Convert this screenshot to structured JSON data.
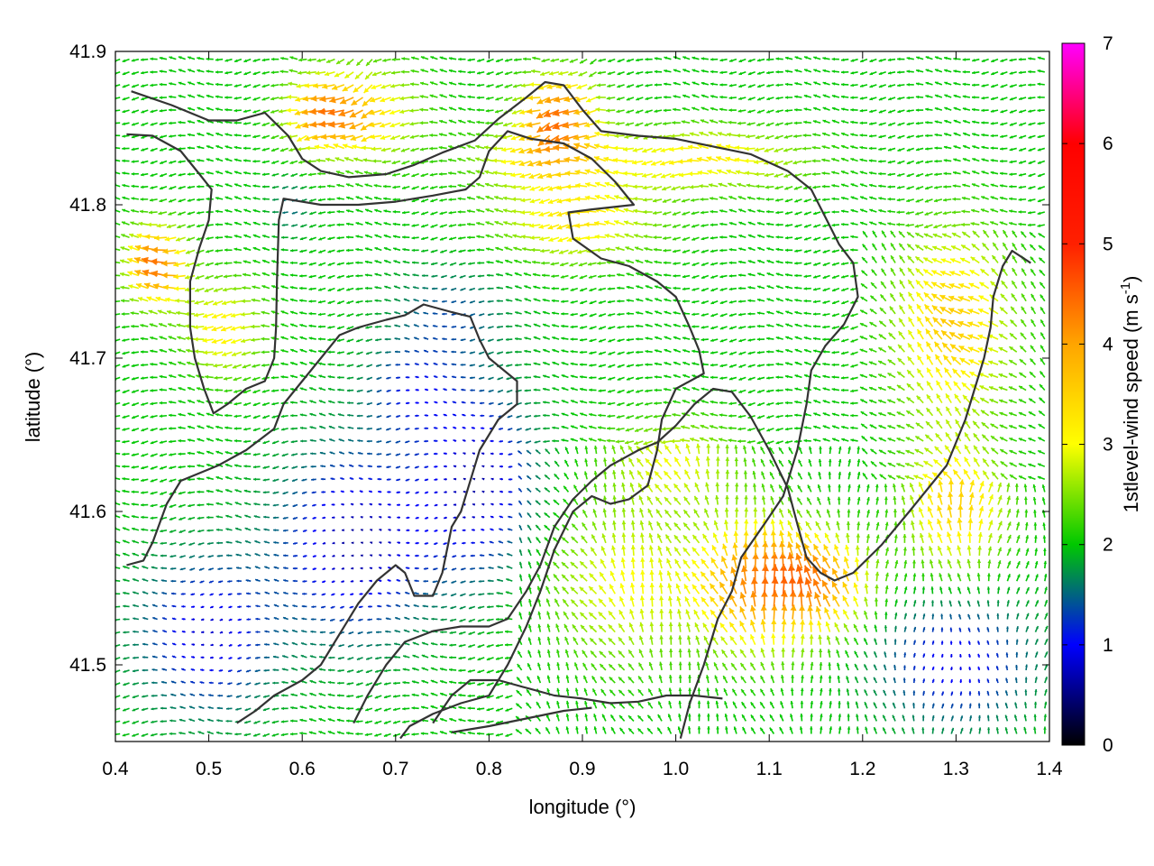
{
  "chart_data": {
    "type": "vector-field",
    "xlabel": "longitude (°)",
    "ylabel": "latitude (°)",
    "colorbar_label": "1stlevel-wind speed (m s",
    "colorbar_label_exp": "-1",
    "colorbar_label_end": ")",
    "xlim": [
      0.4,
      1.4
    ],
    "ylim": [
      41.45,
      41.9
    ],
    "x_ticks": [
      0.4,
      0.5,
      0.6,
      0.7,
      0.8,
      0.9,
      1.0,
      1.1,
      1.2,
      1.3,
      1.4
    ],
    "x_tick_labels": [
      "0.4",
      "0.5",
      "0.6",
      "0.7",
      "0.8",
      "0.9",
      "1.0",
      "1.1",
      "1.2",
      "1.3",
      "1.4"
    ],
    "y_ticks": [
      41.5,
      41.6,
      41.7,
      41.8,
      41.9
    ],
    "y_tick_labels": [
      "41.5",
      "41.6",
      "41.7",
      "41.8",
      "41.9"
    ],
    "colorbar": {
      "min": 0,
      "max": 7,
      "ticks": [
        0,
        1,
        2,
        3,
        4,
        5,
        6,
        7
      ],
      "tick_labels": [
        "0",
        "1",
        "2",
        "3",
        "4",
        "5",
        "6",
        "7"
      ],
      "palette": [
        "#000000",
        "#0000ff",
        "#00c800",
        "#ffff00",
        "#ffa500",
        "#ff0000",
        "#ff00ff"
      ]
    },
    "grid": false,
    "contours": [
      [
        [
          0.417,
          41.874
        ],
        [
          0.46,
          41.865
        ],
        [
          0.5,
          41.855
        ],
        [
          0.53,
          41.855
        ],
        [
          0.56,
          41.86
        ],
        [
          0.585,
          41.845
        ],
        [
          0.6,
          41.83
        ],
        [
          0.62,
          41.822
        ],
        [
          0.65,
          41.818
        ],
        [
          0.69,
          41.82
        ],
        [
          0.72,
          41.826
        ],
        [
          0.75,
          41.834
        ],
        [
          0.785,
          41.842
        ],
        [
          0.81,
          41.856
        ],
        [
          0.84,
          41.87
        ],
        [
          0.86,
          41.88
        ],
        [
          0.88,
          41.878
        ],
        [
          0.9,
          41.862
        ],
        [
          0.92,
          41.848
        ],
        [
          0.96,
          41.845
        ],
        [
          1.0,
          41.843
        ],
        [
          1.04,
          41.838
        ],
        [
          1.08,
          41.833
        ],
        [
          1.12,
          41.822
        ],
        [
          1.145,
          41.81
        ],
        [
          1.16,
          41.792
        ],
        [
          1.175,
          41.774
        ],
        [
          1.19,
          41.762
        ],
        [
          1.195,
          41.74
        ],
        [
          1.18,
          41.722
        ],
        [
          1.16,
          41.708
        ],
        [
          1.145,
          41.692
        ],
        [
          1.14,
          41.67
        ],
        [
          1.13,
          41.64
        ],
        [
          1.115,
          41.61
        ],
        [
          1.095,
          41.592
        ],
        [
          1.07,
          41.57
        ],
        [
          1.06,
          41.548
        ],
        [
          1.045,
          41.53
        ],
        [
          1.03,
          41.5
        ],
        [
          1.015,
          41.475
        ],
        [
          1.005,
          41.452
        ]
      ],
      [
        [
          0.412,
          41.846
        ],
        [
          0.44,
          41.845
        ],
        [
          0.47,
          41.835
        ],
        [
          0.49,
          41.82
        ],
        [
          0.503,
          41.81
        ],
        [
          0.5,
          41.79
        ],
        [
          0.49,
          41.772
        ],
        [
          0.48,
          41.75
        ],
        [
          0.48,
          41.72
        ],
        [
          0.485,
          41.7
        ],
        [
          0.495,
          41.68
        ],
        [
          0.505,
          41.664
        ],
        [
          0.52,
          41.67
        ],
        [
          0.54,
          41.68
        ],
        [
          0.56,
          41.685
        ],
        [
          0.57,
          41.7
        ],
        [
          0.572,
          41.72
        ],
        [
          0.573,
          41.75
        ],
        [
          0.575,
          41.79
        ],
        [
          0.58,
          41.804
        ],
        [
          0.62,
          41.8
        ],
        [
          0.66,
          41.8
        ],
        [
          0.7,
          41.802
        ],
        [
          0.74,
          41.806
        ],
        [
          0.775,
          41.81
        ],
        [
          0.79,
          41.818
        ],
        [
          0.8,
          41.835
        ],
        [
          0.82,
          41.848
        ],
        [
          0.845,
          41.843
        ],
        [
          0.88,
          41.84
        ],
        [
          0.91,
          41.83
        ],
        [
          0.935,
          41.815
        ],
        [
          0.955,
          41.8
        ],
        [
          0.91,
          41.797
        ],
        [
          0.885,
          41.795
        ],
        [
          0.89,
          41.778
        ],
        [
          0.92,
          41.765
        ],
        [
          0.95,
          41.76
        ],
        [
          0.98,
          41.75
        ],
        [
          1.0,
          41.74
        ],
        [
          1.015,
          41.72
        ],
        [
          1.025,
          41.705
        ],
        [
          1.03,
          41.69
        ],
        [
          1.0,
          41.68
        ],
        [
          0.985,
          41.66
        ],
        [
          0.98,
          41.64
        ],
        [
          0.97,
          41.617
        ],
        [
          0.95,
          41.608
        ],
        [
          0.93,
          41.605
        ],
        [
          0.91,
          41.61
        ],
        [
          0.89,
          41.6
        ],
        [
          0.87,
          41.575
        ],
        [
          0.855,
          41.548
        ],
        [
          0.84,
          41.525
        ],
        [
          0.82,
          41.5
        ],
        [
          0.8,
          41.48
        ],
        [
          0.77,
          41.475
        ],
        [
          0.74,
          41.468
        ],
        [
          0.715,
          41.46
        ],
        [
          0.705,
          41.452
        ]
      ],
      [
        [
          0.412,
          41.565
        ],
        [
          0.43,
          41.568
        ],
        [
          0.44,
          41.58
        ],
        [
          0.455,
          41.605
        ],
        [
          0.47,
          41.62
        ],
        [
          0.49,
          41.625
        ],
        [
          0.51,
          41.63
        ],
        [
          0.54,
          41.64
        ],
        [
          0.57,
          41.654
        ],
        [
          0.58,
          41.67
        ],
        [
          0.6,
          41.685
        ],
        [
          0.62,
          41.7
        ],
        [
          0.64,
          41.715
        ],
        [
          0.66,
          41.72
        ],
        [
          0.69,
          41.725
        ],
        [
          0.71,
          41.728
        ],
        [
          0.73,
          41.735
        ],
        [
          0.76,
          41.73
        ],
        [
          0.78,
          41.727
        ],
        [
          0.79,
          41.712
        ],
        [
          0.8,
          41.7
        ],
        [
          0.82,
          41.69
        ],
        [
          0.83,
          41.685
        ],
        [
          0.83,
          41.67
        ],
        [
          0.81,
          41.66
        ],
        [
          0.79,
          41.64
        ],
        [
          0.77,
          41.6
        ],
        [
          0.76,
          41.59
        ],
        [
          0.75,
          41.56
        ],
        [
          0.74,
          41.545
        ],
        [
          0.72,
          41.545
        ],
        [
          0.71,
          41.56
        ],
        [
          0.7,
          41.565
        ],
        [
          0.68,
          41.555
        ],
        [
          0.66,
          41.54
        ],
        [
          0.64,
          41.52
        ],
        [
          0.62,
          41.5
        ],
        [
          0.6,
          41.49
        ],
        [
          0.57,
          41.48
        ],
        [
          0.55,
          41.47
        ],
        [
          0.53,
          41.462
        ]
      ],
      [
        [
          0.655,
          41.462
        ],
        [
          0.67,
          41.48
        ],
        [
          0.69,
          41.5
        ],
        [
          0.71,
          41.515
        ],
        [
          0.74,
          41.522
        ],
        [
          0.77,
          41.525
        ],
        [
          0.8,
          41.525
        ],
        [
          0.82,
          41.53
        ],
        [
          0.84,
          41.548
        ],
        [
          0.855,
          41.565
        ],
        [
          0.87,
          41.59
        ],
        [
          0.89,
          41.608
        ],
        [
          0.91,
          41.62
        ],
        [
          0.93,
          41.63
        ],
        [
          0.96,
          41.64
        ],
        [
          0.98,
          41.645
        ],
        [
          1.0,
          41.656
        ],
        [
          1.02,
          41.67
        ],
        [
          1.04,
          41.68
        ],
        [
          1.06,
          41.678
        ],
        [
          1.08,
          41.662
        ],
        [
          1.1,
          41.64
        ],
        [
          1.12,
          41.615
        ],
        [
          1.13,
          41.592
        ],
        [
          1.14,
          41.57
        ],
        [
          1.155,
          41.56
        ],
        [
          1.17,
          41.555
        ],
        [
          1.19,
          41.56
        ],
        [
          1.22,
          41.578
        ],
        [
          1.25,
          41.6
        ],
        [
          1.27,
          41.615
        ],
        [
          1.29,
          41.63
        ],
        [
          1.3,
          41.645
        ],
        [
          1.31,
          41.66
        ],
        [
          1.32,
          41.68
        ],
        [
          1.33,
          41.7
        ],
        [
          1.337,
          41.72
        ],
        [
          1.34,
          41.74
        ],
        [
          1.35,
          41.76
        ],
        [
          1.36,
          41.77
        ],
        [
          1.38,
          41.762
        ]
      ],
      [
        [
          0.74,
          41.462
        ],
        [
          0.76,
          41.48
        ],
        [
          0.78,
          41.49
        ],
        [
          0.81,
          41.49
        ],
        [
          0.84,
          41.485
        ],
        [
          0.87,
          41.48
        ],
        [
          0.9,
          41.478
        ],
        [
          0.93,
          41.475
        ],
        [
          0.96,
          41.476
        ],
        [
          0.99,
          41.48
        ],
        [
          1.02,
          41.48
        ],
        [
          1.05,
          41.478
        ]
      ],
      [
        [
          0.76,
          41.456
        ],
        [
          0.8,
          41.46
        ],
        [
          0.84,
          41.465
        ],
        [
          0.88,
          41.47
        ],
        [
          0.91,
          41.472
        ]
      ]
    ],
    "arrow_grid": {
      "dx": 0.01,
      "dy": 0.0083,
      "x_start": 0.405,
      "y_start": 41.455,
      "scale_deg_per_ms": 0.004
    }
  }
}
